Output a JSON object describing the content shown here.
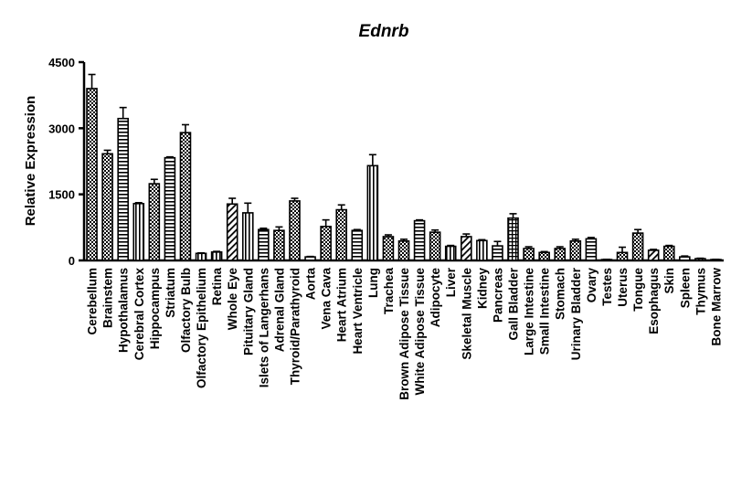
{
  "chart_data": {
    "type": "bar",
    "title": "Ednrb",
    "xlabel": "",
    "ylabel": "Relative Expression",
    "ylim": [
      0,
      4500
    ],
    "yticks": [
      "0",
      "1500",
      "3000",
      "4500"
    ],
    "grid": false,
    "legend": "none",
    "categories": [
      "Cerebellum",
      "Brainstem",
      "Hypothalamus",
      "Cerebral Cortex",
      "Hippocampus",
      "Striatum",
      "Olfactory Bulb",
      "Olfactory Epithelium",
      "Retina",
      "Whole Eye",
      "Pituitary Gland",
      "Islets of Langerhans",
      "Adrenal Gland",
      "Thyroid/Parathyroid",
      "Aorta",
      "Vena Cava",
      "Heart Atrium",
      "Heart Ventricle",
      "Lung",
      "Trachea",
      "Brown Adipose Tissue",
      "White Adipose Tissue",
      "Adipocyte",
      "Liver",
      "Skeletal Muscle",
      "Kidney",
      "Pancreas",
      "Gall Bladder",
      "Large Intestine",
      "Small Intestine",
      "Stomach",
      "Urinary Bladder",
      "Ovary",
      "Testes",
      "Uterus",
      "Tongue",
      "Esophagus",
      "Skin",
      "Spleen",
      "Thymus",
      "Bone Marrow"
    ],
    "values": [
      3900,
      2420,
      3220,
      1290,
      1740,
      2330,
      2900,
      160,
      190,
      1280,
      1080,
      700,
      680,
      1350,
      80,
      770,
      1150,
      680,
      2150,
      540,
      440,
      900,
      640,
      320,
      540,
      450,
      330,
      960,
      270,
      180,
      270,
      440,
      490,
      20,
      180,
      620,
      230,
      320,
      80,
      40,
      20
    ],
    "errors": [
      320,
      80,
      250,
      20,
      100,
      20,
      180,
      10,
      15,
      130,
      220,
      30,
      80,
      60,
      10,
      150,
      110,
      20,
      250,
      40,
      40,
      20,
      50,
      20,
      60,
      20,
      100,
      100,
      40,
      20,
      40,
      40,
      30,
      5,
      120,
      80,
      20,
      20,
      20,
      10,
      5
    ],
    "patterns": [
      "check",
      "check",
      "hlines",
      "vlines",
      "check",
      "hlines",
      "check",
      "vlines",
      "vlines",
      "diag",
      "vlines",
      "hlines",
      "check",
      "check",
      "hlines",
      "check",
      "check",
      "hlines",
      "vlines",
      "check",
      "check",
      "hlines",
      "check",
      "vlines",
      "diag",
      "vlines",
      "hlines",
      "hgrid",
      "check",
      "check",
      "check",
      "check",
      "hlines",
      "vlines",
      "check",
      "check",
      "diag",
      "check",
      "hlines",
      "vlines",
      "hlines"
    ]
  }
}
